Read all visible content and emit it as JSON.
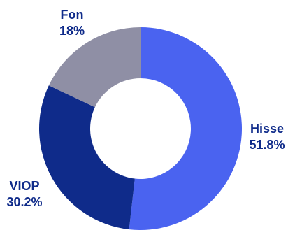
{
  "chart_data": {
    "type": "pie",
    "donut": true,
    "legend": "none",
    "slices": [
      {
        "label": "Hisse",
        "value": 51.8,
        "value_text": "51.8%",
        "color": "#4a63f0"
      },
      {
        "label": "VIOP",
        "value": 30.2,
        "value_text": "30.2%",
        "color": "#0f2b8a"
      },
      {
        "label": "Fon",
        "value": 18.0,
        "value_text": "18%",
        "color": "#8f8fa5"
      }
    ],
    "label_color": "#0f2b8a"
  }
}
